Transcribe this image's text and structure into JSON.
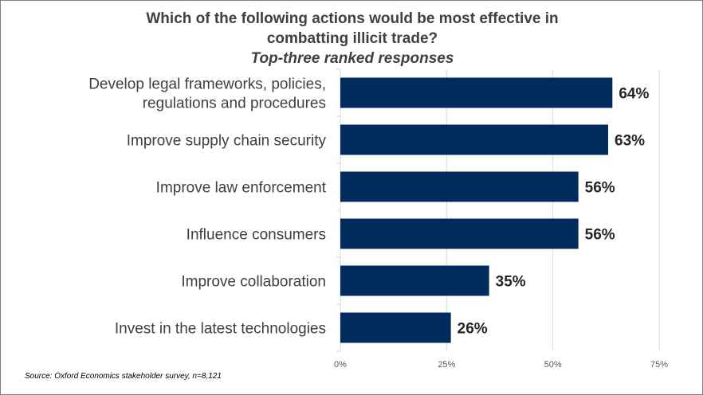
{
  "chart_data": {
    "type": "bar",
    "orientation": "horizontal",
    "title_line1": "Which of the following  actions would be most effective in",
    "title_line2": "combatting illicit  trade?",
    "subtitle": "Top-three ranked responses",
    "categories": [
      [
        "Develop legal frameworks, policies,",
        "regulations and procedures"
      ],
      [
        "Improve supply chain security"
      ],
      [
        "Improve law enforcement"
      ],
      [
        "Influence consumers"
      ],
      [
        "Improve collaboration"
      ],
      [
        "Invest in the latest technologies"
      ]
    ],
    "values": [
      64,
      63,
      56,
      56,
      35,
      26
    ],
    "value_labels": [
      "64%",
      "63%",
      "56%",
      "56%",
      "35%",
      "26%"
    ],
    "xlim": [
      0,
      75
    ],
    "xticks": [
      0,
      25,
      50,
      75
    ],
    "xtick_labels": [
      "0%",
      "25%",
      "50%",
      "75%"
    ],
    "grid": true,
    "bar_color": "#002b5c",
    "gridline_color": "#d9d9d9",
    "source": "Source: Oxford Economics stakeholder survey, n=8,121"
  }
}
